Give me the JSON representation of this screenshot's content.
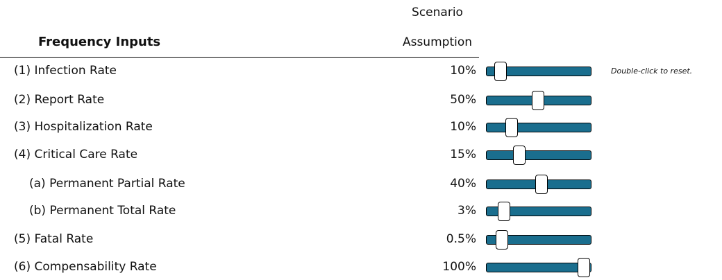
{
  "header": {
    "column": [
      "Scenario",
      "Assumption"
    ],
    "title": "Frequency Inputs"
  },
  "hint": "Double-click to reset.",
  "rows": [
    {
      "label": "(1) Infection Rate",
      "value": "10%"
    },
    {
      "label": "(2) Report Rate",
      "value": "50%"
    },
    {
      "label": "(3) Hospitalization Rate",
      "value": "10%"
    },
    {
      "label": "(4) Critical Care Rate",
      "value": "15%"
    },
    {
      "label": "(a) Permanent Partial Rate",
      "value": "40%"
    },
    {
      "label": "(b) Permanent Total Rate",
      "value": "3%"
    },
    {
      "label": "(5) Fatal Rate",
      "value": "0.5%"
    },
    {
      "label": "(6) Compensability Rate",
      "value": "100%"
    }
  ]
}
